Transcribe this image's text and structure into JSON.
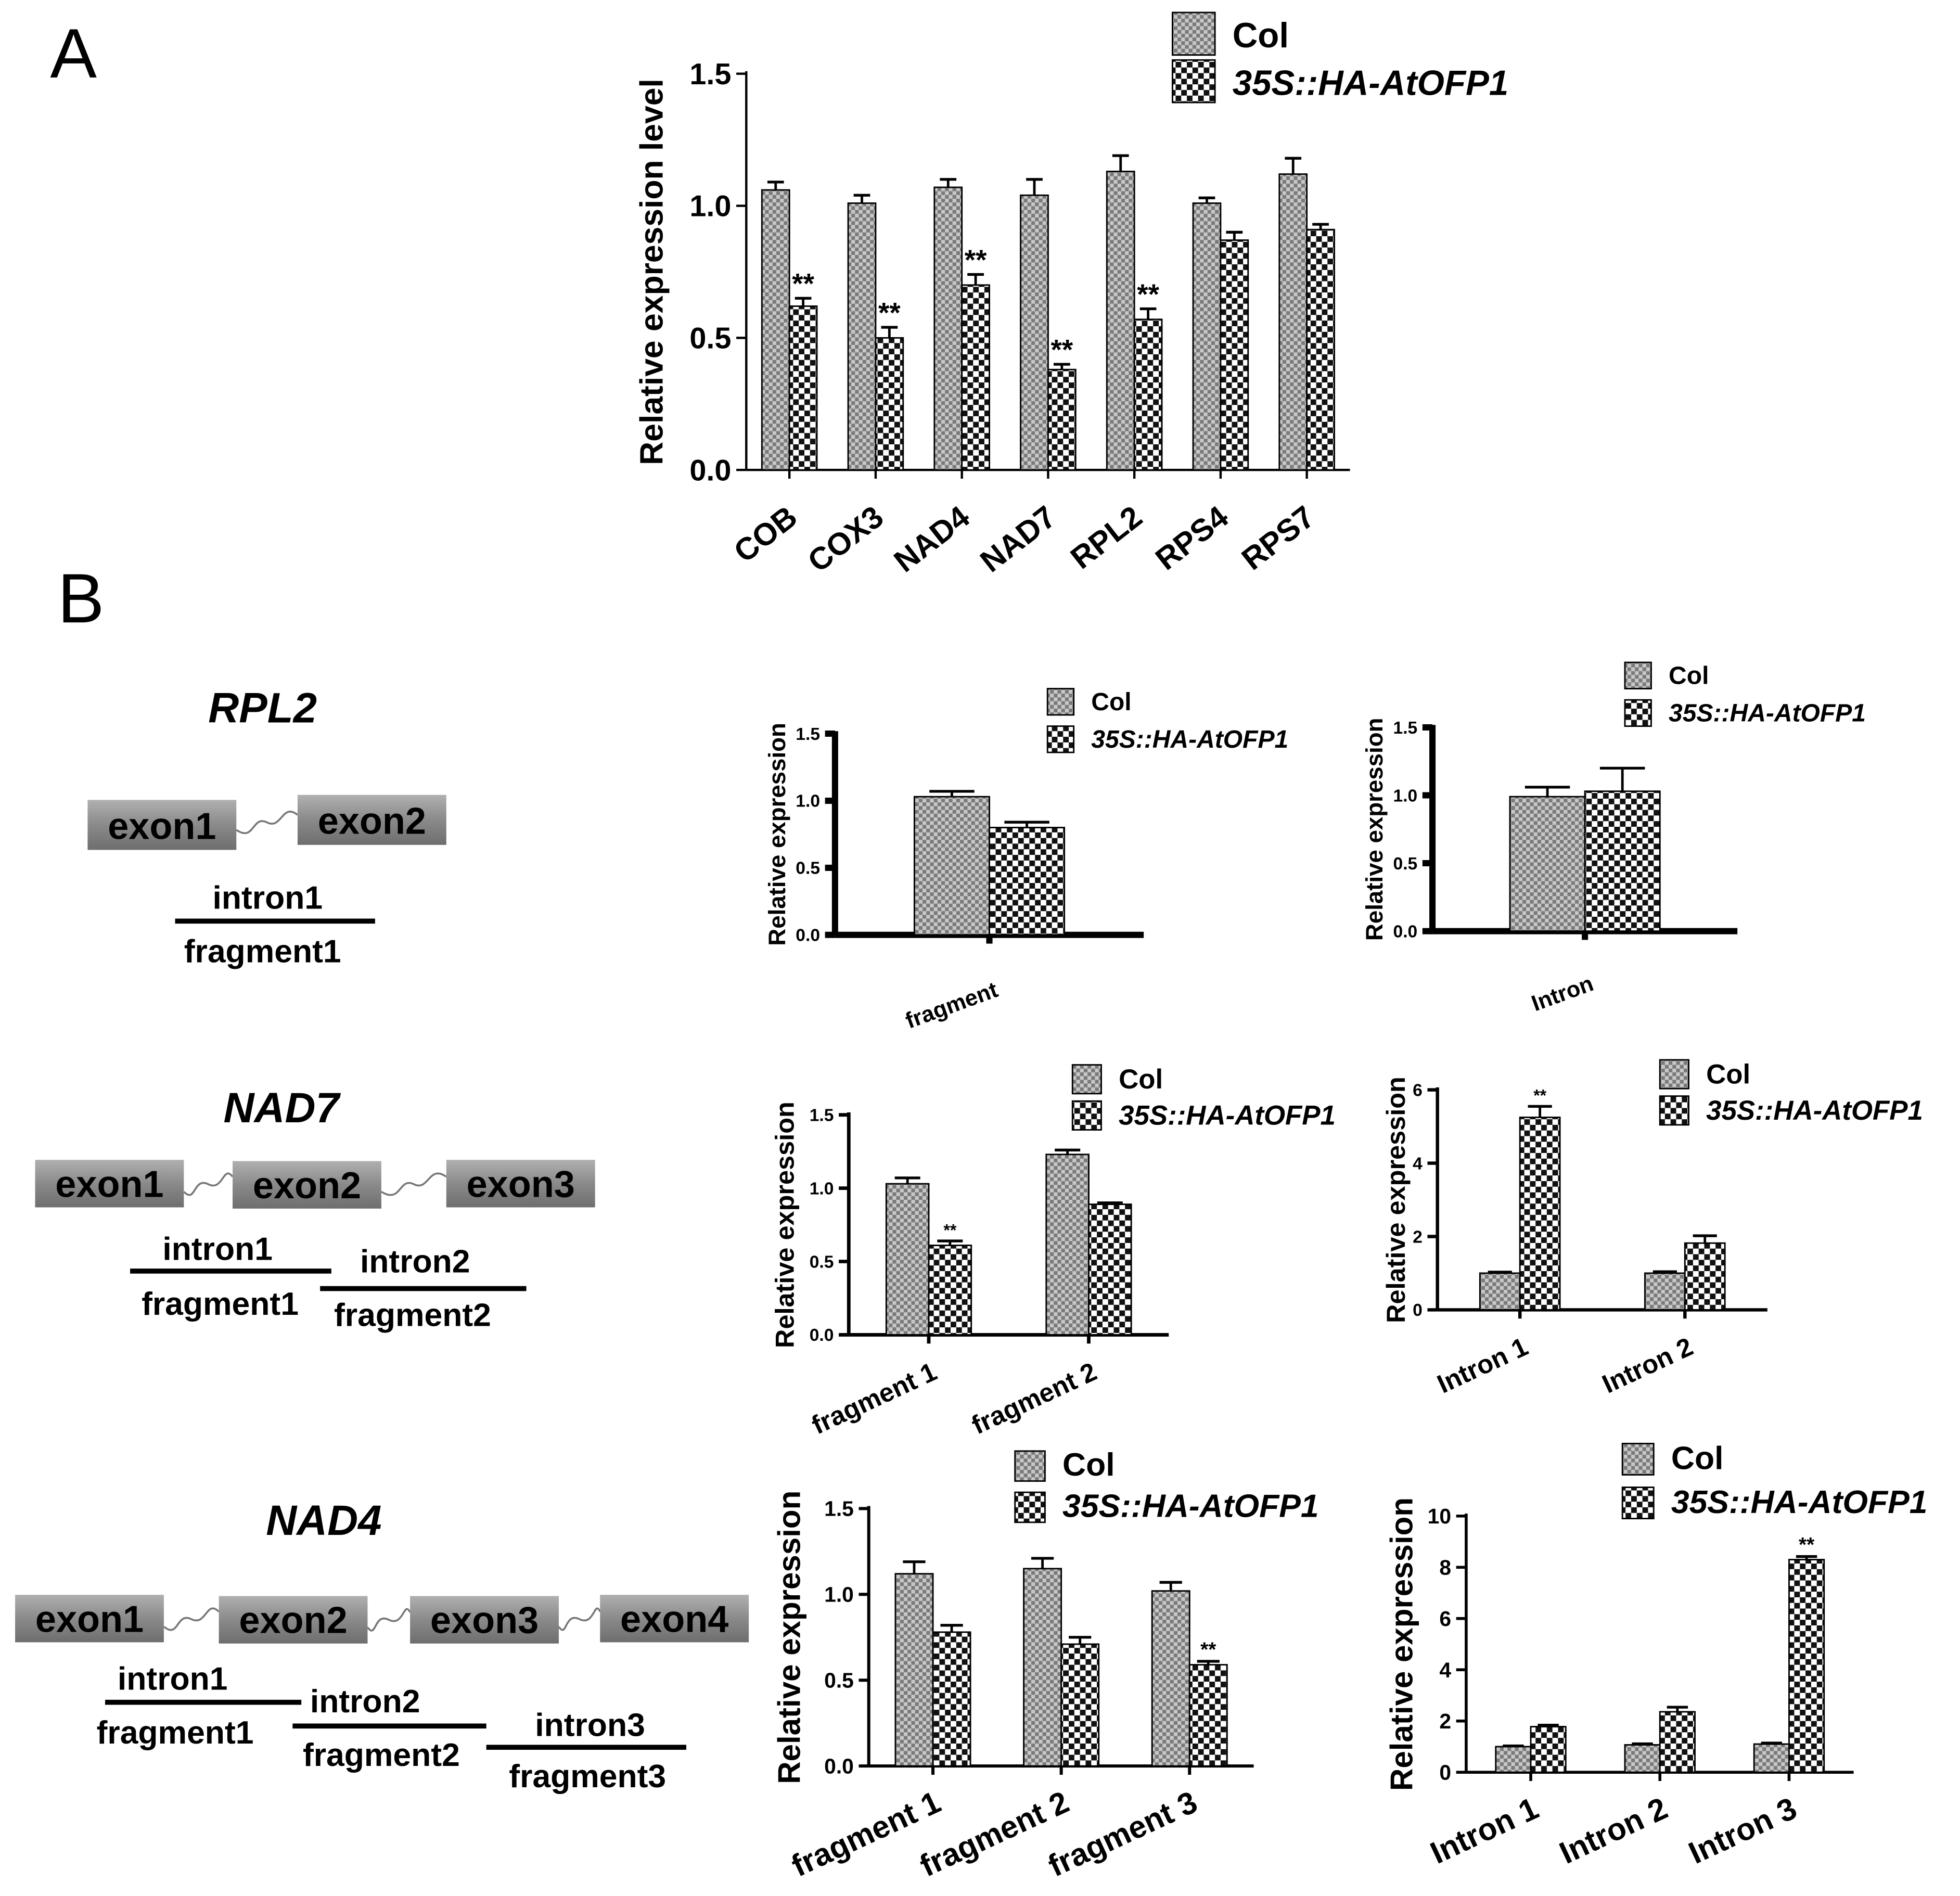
{
  "panel_labels": {
    "a": "A",
    "b": "B"
  },
  "colors": {
    "col_fill": "#bdbdbd",
    "ofp_dark": "#111111",
    "ofp_light": "#ffffff",
    "gene_box": "#8c8c8c",
    "text": "#000000"
  },
  "schematics": [
    {
      "gene": "RPL2",
      "exons": [
        "exon1",
        "exon2"
      ],
      "introns": [
        "intron1"
      ],
      "fragments": [
        "fragment1"
      ]
    },
    {
      "gene": "NAD7",
      "exons": [
        "exon1",
        "exon2",
        "exon3"
      ],
      "introns": [
        "intron1",
        "intron2"
      ],
      "fragments": [
        "fragment1",
        "fragment2"
      ]
    },
    {
      "gene": "NAD4",
      "exons": [
        "exon1",
        "exon2",
        "exon3",
        "exon4"
      ],
      "introns": [
        "intron1",
        "intron2",
        "intron3"
      ],
      "fragments": [
        "fragment1",
        "fragment2",
        "fragment3"
      ]
    }
  ],
  "chart_data": [
    {
      "id": "A",
      "type": "bar",
      "title": "",
      "xlabel": "",
      "ylabel": "Relative expression level",
      "ylim": [
        0,
        1.5
      ],
      "yticks": [
        "0.0",
        "0.5",
        "1.0",
        "1.5"
      ],
      "ytick_values": [
        0,
        0.5,
        1.0,
        1.5
      ],
      "categories": [
        "COB",
        "COX3",
        "NAD4",
        "NAD7",
        "RPL2",
        "RPS4",
        "RPS7"
      ],
      "legend": [
        "Col",
        "35S::HA-AtOFP1"
      ],
      "legend_position": "top",
      "series": [
        {
          "name": "Col",
          "values": [
            1.06,
            1.01,
            1.07,
            1.04,
            1.13,
            1.01,
            1.12
          ],
          "errors": [
            0.03,
            0.03,
            0.03,
            0.06,
            0.06,
            0.02,
            0.06
          ]
        },
        {
          "name": "35S::HA-AtOFP1",
          "values": [
            0.62,
            0.5,
            0.7,
            0.38,
            0.57,
            0.87,
            0.91
          ],
          "errors": [
            0.03,
            0.04,
            0.04,
            0.02,
            0.04,
            0.03,
            0.02
          ]
        }
      ],
      "annotations": [
        {
          "category": "COB",
          "series": "35S::HA-AtOFP1",
          "text": "**"
        },
        {
          "category": "COX3",
          "series": "35S::HA-AtOFP1",
          "text": "**"
        },
        {
          "category": "NAD4",
          "series": "35S::HA-AtOFP1",
          "text": "**"
        },
        {
          "category": "NAD7",
          "series": "35S::HA-AtOFP1",
          "text": "**"
        },
        {
          "category": "RPL2",
          "series": "35S::HA-AtOFP1",
          "text": "**"
        }
      ]
    },
    {
      "id": "B1",
      "type": "bar",
      "title": "",
      "xlabel": "",
      "ylabel": "Relative expression",
      "ylim": [
        0,
        1.5
      ],
      "yticks": [
        "0.0",
        "0.5",
        "1.0",
        "1.5"
      ],
      "ytick_values": [
        0,
        0.5,
        1.0,
        1.5
      ],
      "categories": [
        "fragment"
      ],
      "legend": [
        "Col",
        "35S::HA-AtOFP1"
      ],
      "legend_position": "top",
      "series": [
        {
          "name": "Col",
          "values": [
            1.03
          ],
          "errors": [
            0.04
          ]
        },
        {
          "name": "35S::HA-AtOFP1",
          "values": [
            0.8
          ],
          "errors": [
            0.04
          ]
        }
      ],
      "annotations": []
    },
    {
      "id": "B2",
      "type": "bar",
      "title": "",
      "xlabel": "",
      "ylabel": "Relative expression",
      "ylim": [
        0,
        1.5
      ],
      "yticks": [
        "0.0",
        "0.5",
        "1.0",
        "1.5"
      ],
      "ytick_values": [
        0,
        0.5,
        1.0,
        1.5
      ],
      "categories": [
        "Intron"
      ],
      "legend": [
        "Col",
        "35S::HA-AtOFP1"
      ],
      "legend_position": "top",
      "series": [
        {
          "name": "Col",
          "values": [
            0.99
          ],
          "errors": [
            0.07
          ]
        },
        {
          "name": "35S::HA-AtOFP1",
          "values": [
            1.03
          ],
          "errors": [
            0.17
          ]
        }
      ],
      "annotations": []
    },
    {
      "id": "B3",
      "type": "bar",
      "title": "",
      "xlabel": "",
      "ylabel": "Relative expression",
      "ylim": [
        0,
        1.5
      ],
      "yticks": [
        "0.0",
        "0.5",
        "1.0",
        "1.5"
      ],
      "ytick_values": [
        0,
        0.5,
        1.0,
        1.5
      ],
      "categories": [
        "fragment 1",
        "fragment 2"
      ],
      "legend": [
        "Col",
        "35S::HA-AtOFP1"
      ],
      "legend_position": "top",
      "series": [
        {
          "name": "Col",
          "values": [
            1.03,
            1.23
          ],
          "errors": [
            0.04,
            0.03
          ]
        },
        {
          "name": "35S::HA-AtOFP1",
          "values": [
            0.61,
            0.89
          ],
          "errors": [
            0.03,
            0.01
          ]
        }
      ],
      "annotations": [
        {
          "category": "fragment 1",
          "series": "35S::HA-AtOFP1",
          "text": "**"
        }
      ]
    },
    {
      "id": "B4",
      "type": "bar",
      "title": "",
      "xlabel": "",
      "ylabel": "Relative expression",
      "ylim": [
        0,
        6
      ],
      "yticks": [
        "0",
        "2",
        "4",
        "6"
      ],
      "ytick_values": [
        0,
        2,
        4,
        6
      ],
      "categories": [
        "Intron 1",
        "Intron 2"
      ],
      "legend": [
        "Col",
        "35S::HA-AtOFP1"
      ],
      "legend_position": "top",
      "series": [
        {
          "name": "Col",
          "values": [
            1.0,
            1.0
          ],
          "errors": [
            0.03,
            0.04
          ]
        },
        {
          "name": "35S::HA-AtOFP1",
          "values": [
            5.25,
            1.82
          ],
          "errors": [
            0.3,
            0.2
          ]
        }
      ],
      "annotations": [
        {
          "category": "Intron 1",
          "series": "35S::HA-AtOFP1",
          "text": "**"
        }
      ]
    },
    {
      "id": "B5",
      "type": "bar",
      "title": "",
      "xlabel": "",
      "ylabel": "Relative expression",
      "ylim": [
        0,
        1.5
      ],
      "yticks": [
        "0.0",
        "0.5",
        "1.0",
        "1.5"
      ],
      "ytick_values": [
        0,
        0.5,
        1.0,
        1.5
      ],
      "categories": [
        "fragment 1",
        "fragment 2",
        "fragment 3"
      ],
      "legend": [
        "Col",
        "35S::HA-AtOFP1"
      ],
      "legend_position": "top",
      "series": [
        {
          "name": "Col",
          "values": [
            1.12,
            1.15,
            1.02
          ],
          "errors": [
            0.07,
            0.06,
            0.05
          ]
        },
        {
          "name": "35S::HA-AtOFP1",
          "values": [
            0.78,
            0.71,
            0.59
          ],
          "errors": [
            0.04,
            0.04,
            0.02
          ]
        }
      ],
      "annotations": [
        {
          "category": "fragment 3",
          "series": "35S::HA-AtOFP1",
          "text": "**"
        }
      ]
    },
    {
      "id": "B6",
      "type": "bar",
      "title": "",
      "xlabel": "",
      "ylabel": "Relative expression",
      "ylim": [
        0,
        10
      ],
      "yticks": [
        "0",
        "2",
        "4",
        "6",
        "8",
        "10"
      ],
      "ytick_values": [
        0,
        2,
        4,
        6,
        8,
        10
      ],
      "categories": [
        "Intron 1",
        "Intron 2",
        "Intron 3"
      ],
      "legend": [
        "Col",
        "35S::HA-AtOFP1"
      ],
      "legend_position": "top",
      "series": [
        {
          "name": "Col",
          "values": [
            1.0,
            1.07,
            1.1
          ],
          "errors": [
            0.03,
            0.04,
            0.04
          ]
        },
        {
          "name": "35S::HA-AtOFP1",
          "values": [
            1.78,
            2.36,
            8.3
          ],
          "errors": [
            0.06,
            0.18,
            0.12
          ]
        }
      ],
      "annotations": [
        {
          "category": "Intron 3",
          "series": "35S::HA-AtOFP1",
          "text": "**"
        }
      ]
    }
  ]
}
